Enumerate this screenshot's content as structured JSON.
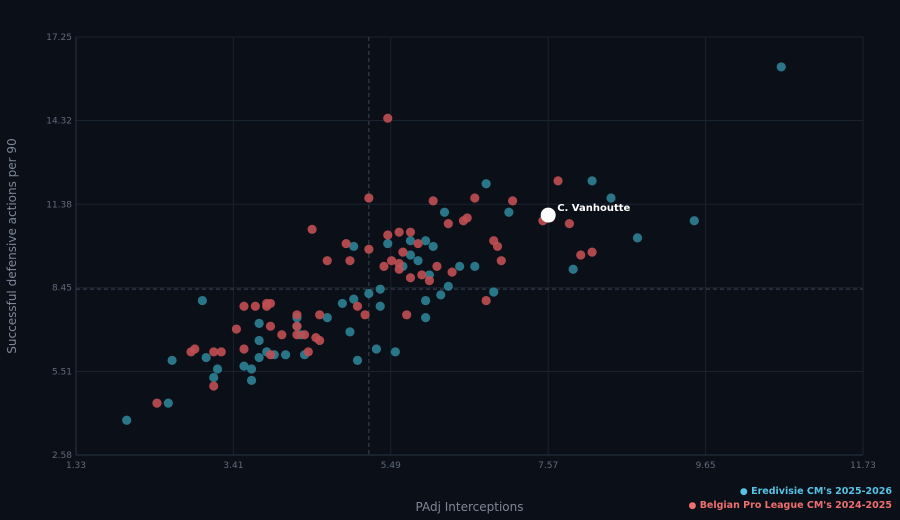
{
  "chart_data": {
    "type": "scatter",
    "xlabel": "PAdj Interceptions",
    "ylabel": "Successful defensive actions per 90",
    "xlim": [
      1.33,
      11.73
    ],
    "ylim": [
      2.58,
      17.25
    ],
    "x_ticks": [
      "1.33",
      "3.41",
      "5.49",
      "7.57",
      "9.65",
      "11.73"
    ],
    "y_ticks": [
      "2.58",
      "5.51",
      "8.45",
      "11.38",
      "14.32",
      "17.25"
    ],
    "reference_lines": {
      "x": 5.2,
      "y": 8.4
    },
    "grid": true,
    "legend_position": "bottom-right",
    "series": [
      {
        "name": "Eredivisie CM's 2025-2026",
        "color": "#2e8296",
        "legend_color": "#57c3e6",
        "points": [
          [
            10.65,
            16.2
          ],
          [
            8.15,
            12.2
          ],
          [
            8.4,
            11.6
          ],
          [
            6.75,
            12.1
          ],
          [
            7.05,
            11.1
          ],
          [
            9.5,
            10.8
          ],
          [
            8.75,
            10.2
          ],
          [
            7.9,
            9.1
          ],
          [
            6.2,
            11.1
          ],
          [
            5.75,
            10.1
          ],
          [
            5.95,
            10.1
          ],
          [
            5.75,
            9.6
          ],
          [
            6.05,
            9.9
          ],
          [
            5.85,
            9.4
          ],
          [
            5.45,
            10.0
          ],
          [
            5.0,
            9.9
          ],
          [
            5.65,
            9.2
          ],
          [
            6.0,
            8.9
          ],
          [
            6.4,
            9.2
          ],
          [
            6.6,
            9.2
          ],
          [
            6.85,
            8.3
          ],
          [
            6.25,
            8.5
          ],
          [
            6.15,
            8.2
          ],
          [
            5.95,
            8.0
          ],
          [
            5.35,
            8.4
          ],
          [
            5.2,
            8.25
          ],
          [
            5.0,
            8.05
          ],
          [
            4.85,
            7.9
          ],
          [
            4.65,
            7.4
          ],
          [
            5.35,
            7.8
          ],
          [
            5.95,
            7.4
          ],
          [
            5.3,
            6.3
          ],
          [
            5.55,
            6.2
          ],
          [
            5.05,
            5.9
          ],
          [
            4.25,
            7.4
          ],
          [
            4.25,
            7.1
          ],
          [
            4.3,
            6.8
          ],
          [
            3.75,
            7.2
          ],
          [
            3.75,
            6.6
          ],
          [
            3.85,
            6.2
          ],
          [
            3.75,
            6.0
          ],
          [
            3.95,
            6.1
          ],
          [
            4.1,
            6.1
          ],
          [
            4.35,
            6.1
          ],
          [
            3.0,
            8.0
          ],
          [
            3.2,
            5.6
          ],
          [
            3.05,
            6.0
          ],
          [
            3.55,
            5.7
          ],
          [
            3.65,
            5.6
          ],
          [
            3.65,
            5.2
          ],
          [
            3.15,
            5.3
          ],
          [
            2.6,
            5.9
          ],
          [
            2.55,
            4.4
          ],
          [
            2.0,
            3.8
          ],
          [
            4.95,
            6.9
          ]
        ]
      },
      {
        "name": "Belgian Pro League CM's 2024-2025",
        "color": "#c04f53",
        "legend_color": "#ee6f6f",
        "points": [
          [
            5.45,
            14.4
          ],
          [
            7.7,
            12.2
          ],
          [
            7.1,
            11.5
          ],
          [
            6.6,
            11.6
          ],
          [
            6.05,
            11.5
          ],
          [
            5.2,
            11.6
          ],
          [
            7.5,
            10.8
          ],
          [
            7.6,
            10.9
          ],
          [
            7.85,
            10.7
          ],
          [
            8.0,
            9.6
          ],
          [
            8.15,
            9.7
          ],
          [
            6.95,
            9.4
          ],
          [
            6.9,
            9.9
          ],
          [
            6.85,
            10.1
          ],
          [
            6.25,
            10.7
          ],
          [
            6.45,
            10.8
          ],
          [
            6.5,
            10.9
          ],
          [
            5.75,
            10.4
          ],
          [
            5.6,
            10.4
          ],
          [
            5.85,
            10.0
          ],
          [
            5.45,
            10.3
          ],
          [
            5.2,
            9.8
          ],
          [
            5.65,
            9.7
          ],
          [
            5.5,
            9.4
          ],
          [
            5.4,
            9.2
          ],
          [
            5.6,
            9.1
          ],
          [
            5.6,
            9.3
          ],
          [
            5.75,
            8.8
          ],
          [
            5.9,
            8.9
          ],
          [
            6.1,
            9.2
          ],
          [
            6.3,
            9.0
          ],
          [
            6.0,
            8.7
          ],
          [
            6.75,
            8.0
          ],
          [
            4.65,
            9.4
          ],
          [
            4.95,
            9.4
          ],
          [
            4.9,
            10.0
          ],
          [
            4.45,
            10.5
          ],
          [
            5.15,
            7.5
          ],
          [
            5.7,
            7.5
          ],
          [
            5.05,
            7.8
          ],
          [
            4.25,
            7.5
          ],
          [
            4.55,
            7.5
          ],
          [
            4.25,
            7.1
          ],
          [
            4.25,
            6.8
          ],
          [
            3.55,
            7.8
          ],
          [
            3.7,
            7.8
          ],
          [
            3.9,
            7.9
          ],
          [
            3.85,
            7.8
          ],
          [
            3.85,
            7.9
          ],
          [
            3.9,
            7.1
          ],
          [
            3.9,
            6.1
          ],
          [
            4.05,
            6.8
          ],
          [
            4.35,
            6.8
          ],
          [
            4.5,
            6.7
          ],
          [
            4.55,
            6.6
          ],
          [
            4.4,
            6.2
          ],
          [
            3.45,
            7.0
          ],
          [
            3.55,
            6.3
          ],
          [
            3.15,
            6.2
          ],
          [
            3.25,
            6.2
          ],
          [
            2.9,
            6.3
          ],
          [
            2.85,
            6.2
          ],
          [
            2.4,
            4.4
          ],
          [
            3.15,
            5.0
          ]
        ]
      }
    ],
    "highlight": {
      "label": "C. Vanhoutte",
      "x": 7.57,
      "y": 11.0,
      "color": "#ffffff"
    }
  }
}
